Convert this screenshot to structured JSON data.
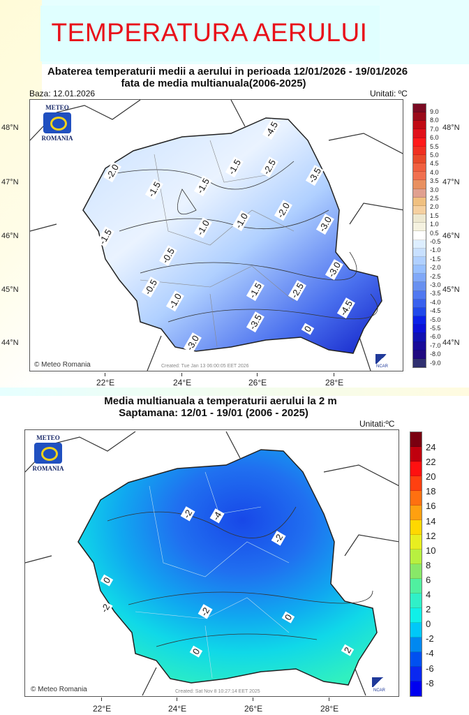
{
  "page_title": "TEMPERATURA AERULUI",
  "map1": {
    "title_line1": "Abaterea temperaturii medii a aerului in perioada 12/01/2026 - 19/01/2026",
    "title_line2": "fata de media multianuala(2006-2025)",
    "base": "Baza: 12.01.2026",
    "units": "Unitati: ºC",
    "logo_top": "METEO",
    "logo_bottom": "ROMANIA",
    "copyright": "© Meteo Romania",
    "created": "Created: Tue Jan 13 06:00:05 EET 2026",
    "ncar": "NCAR",
    "lat_labels": [
      "48°N",
      "47°N",
      "46°N",
      "45°N",
      "44°N"
    ],
    "lon_labels": [
      "22°E",
      "24°E",
      "26°E",
      "28°E"
    ],
    "contour_labels": [
      "-4.5",
      "-2.5",
      "-3.5",
      "-2.0",
      "-1.5",
      "-1.5",
      "-1.5",
      "-2.0",
      "-1.0",
      "-1.0",
      "-3.0",
      "-1.5",
      "-0.5",
      "-3.0",
      "-0.5",
      "-1.0",
      "-1.5",
      "-2.5",
      "-4.5",
      "-3.5",
      "-3.0",
      "0"
    ],
    "legend": {
      "labels": [
        "9.0",
        "8.0",
        "7.0",
        "6.0",
        "5.5",
        "5.0",
        "4.5",
        "4.0",
        "3.5",
        "3.0",
        "2.5",
        "2.0",
        "1.5",
        "1.0",
        "0.5",
        "-0.5",
        "-1.0",
        "-1.5",
        "-2.0",
        "-2.5",
        "-3.0",
        "-3.5",
        "-4.0",
        "-4.5",
        "-5.0",
        "-5.5",
        "-6.0",
        "-7.0",
        "-8.0",
        "-9.0"
      ],
      "colors": [
        "#7a0a22",
        "#9a0a1a",
        "#c00a14",
        "#e0101a",
        "#ff1a1a",
        "#f03020",
        "#e84a2a",
        "#f06040",
        "#f07050",
        "#e89060",
        "#e0a090",
        "#f0c080",
        "#f5d0a0",
        "#ede8d0",
        "#f5f2e0",
        "#ffffff",
        "#ddeeff",
        "#c8e0ff",
        "#b0d0ff",
        "#98c0ff",
        "#80a8f8",
        "#6890f0",
        "#5078f0",
        "#3860ee",
        "#2048ea",
        "#0a20e8",
        "#0a10d8",
        "#1010b0",
        "#180a98",
        "#200a80",
        "#303070"
      ]
    }
  },
  "map2": {
    "title_line1": "Media multianuala a temperaturii aerului la 2 m",
    "title_line2": "Saptamana: 12/01 - 19/01 (2006 - 2025)",
    "units": "Unitati:ºC",
    "logo_top": "METEO",
    "logo_bottom": "ROMANIA",
    "copyright": "© Meteo Romania",
    "created": "Created: Sat Nov  8 10:27:14 EET 2025",
    "ncar": "NCAR",
    "lon_labels": [
      "22°E",
      "24°E",
      "26°E",
      "28°E"
    ],
    "contour_labels": [
      "-2",
      "-4",
      "-2",
      "0",
      "-2",
      "-2",
      "0",
      "0",
      "2"
    ],
    "legend": {
      "labels": [
        "24",
        "22",
        "20",
        "18",
        "16",
        "14",
        "12",
        "10",
        "8",
        "6",
        "4",
        "2",
        "0",
        "-2",
        "-4",
        "-6",
        "-8"
      ],
      "colors": [
        "#7a0010",
        "#c0000e",
        "#ff1010",
        "#ff4010",
        "#ff7010",
        "#ffa010",
        "#ffd800",
        "#e8ee20",
        "#b8f040",
        "#88e868",
        "#50f0a0",
        "#30f0c8",
        "#10f0e8",
        "#00c8f8",
        "#0088f0",
        "#0050f0",
        "#0a28f0",
        "#0000f0"
      ]
    }
  },
  "colors": {
    "title_red": "#e8101a",
    "bg_cyan": "#e6ffff"
  }
}
